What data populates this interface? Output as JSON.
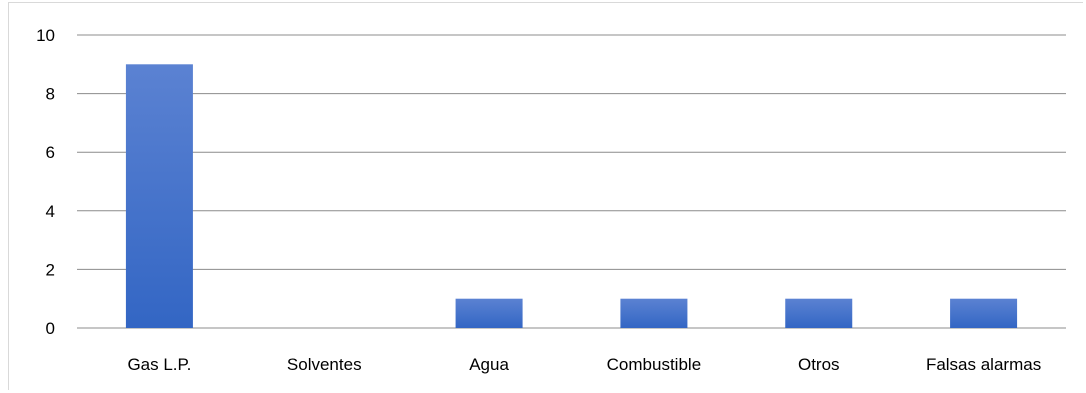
{
  "chart_data": {
    "type": "bar",
    "categories": [
      "Gas L.P.",
      "Solventes",
      "Agua",
      "Combustible",
      "Otros",
      "Falsas alarmas"
    ],
    "values": [
      9,
      0,
      1,
      1,
      1,
      1
    ],
    "ylim": [
      0,
      10
    ],
    "yticks": [
      "0",
      "2",
      "4",
      "6",
      "8",
      "10"
    ],
    "grid": true,
    "legend": "none",
    "colors": {
      "bar_top": "#5b82d2",
      "bar_bottom": "#3366c4",
      "gridline": "#8c8c8c",
      "frame": "#d9d9d9"
    }
  }
}
